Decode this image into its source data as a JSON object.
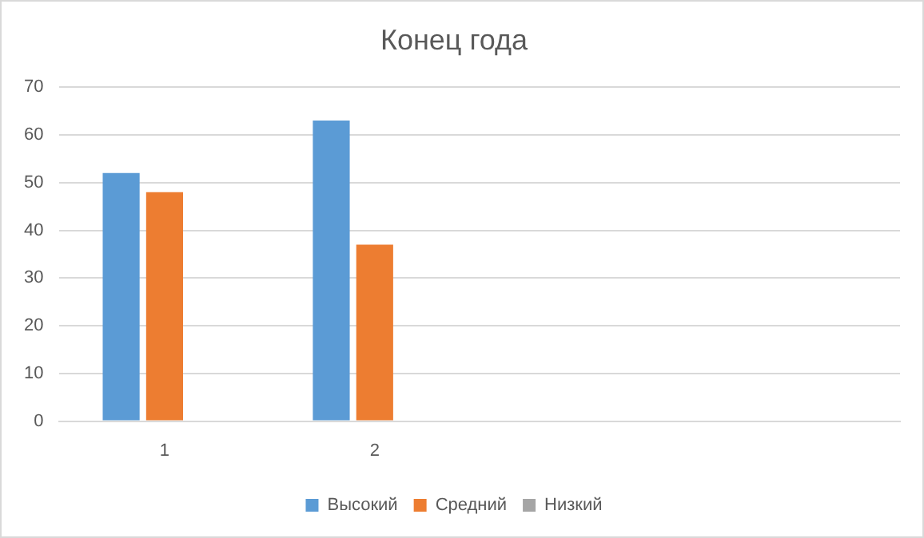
{
  "chart_data": {
    "type": "bar",
    "title": "Конец года",
    "categories": [
      "1",
      "2",
      null,
      null
    ],
    "series": [
      {
        "name": "Высокий",
        "color": "#5b9bd5",
        "values": [
          52,
          63,
          null,
          null
        ]
      },
      {
        "name": "Средний",
        "color": "#ed7d31",
        "values": [
          48,
          37,
          null,
          null
        ]
      },
      {
        "name": "Низкий",
        "color": "#a5a5a5",
        "values": [
          null,
          null,
          null,
          null
        ]
      }
    ],
    "ylim": [
      0,
      70
    ],
    "yticks": [
      0,
      10,
      20,
      30,
      40,
      50,
      60,
      70
    ],
    "grid": "y",
    "legend": "bottom"
  }
}
